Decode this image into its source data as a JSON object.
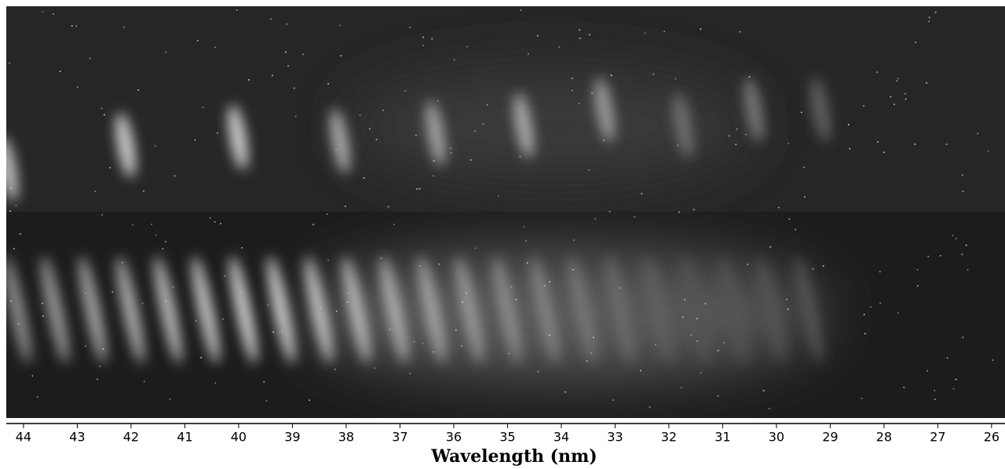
{
  "chart_data": {
    "type": "image",
    "xlabel": "Wavelength (nm)",
    "xlim": [
      44.32,
      25.75
    ],
    "xticks": [
      44,
      43,
      42,
      41,
      40,
      39,
      38,
      37,
      36,
      35,
      34,
      33,
      32,
      31,
      30,
      29,
      28,
      27,
      26
    ]
  }
}
